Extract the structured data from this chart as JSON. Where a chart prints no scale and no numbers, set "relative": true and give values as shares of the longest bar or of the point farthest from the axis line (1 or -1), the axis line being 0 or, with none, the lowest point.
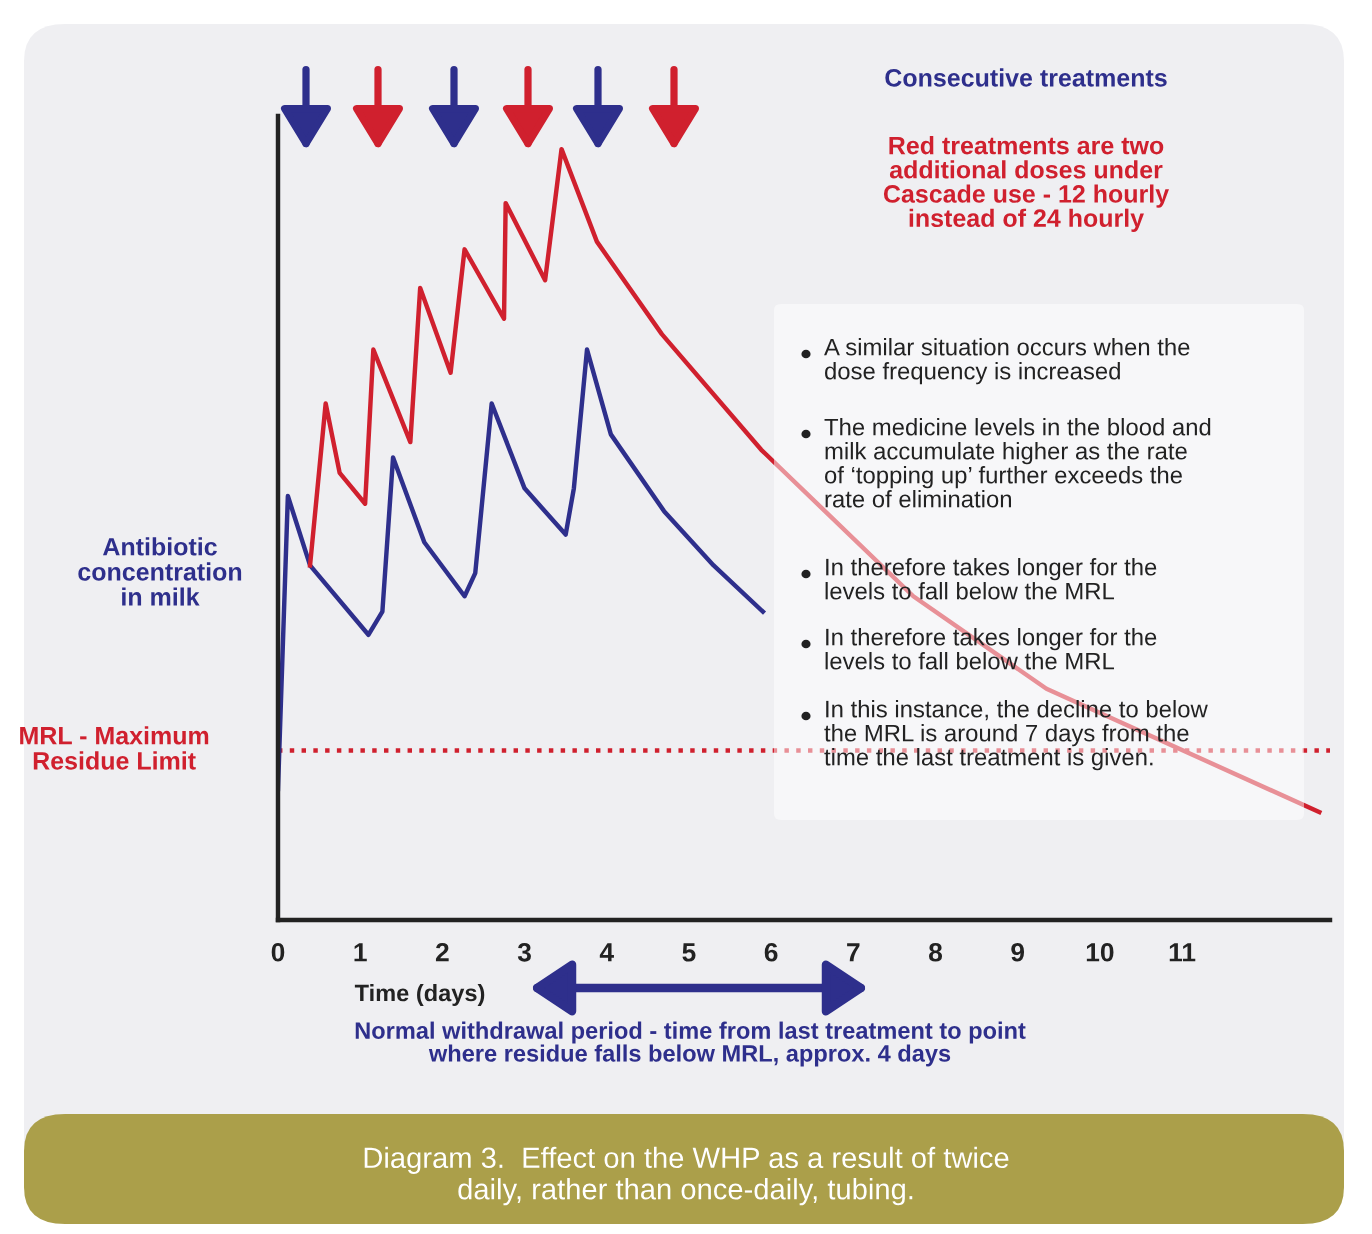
{
  "chart_data": {
    "type": "line",
    "relative": true,
    "xlabel": "Time (days)",
    "ylabel": "Antibiotic\nconcentration\nin milk",
    "xlim": [
      0,
      12.8
    ],
    "xticks": [
      0,
      1,
      2,
      3,
      4,
      5,
      6,
      7,
      8,
      9,
      10,
      11
    ],
    "grid": false,
    "legend": false,
    "marker": "none",
    "line_style": "solid",
    "series": [
      {
        "color": "#2e2f8c",
        "x": [
          0,
          0.12,
          0.39,
          1.1,
          1.27,
          1.4,
          1.78,
          2.27,
          2.4,
          2.6,
          3.0,
          3.5,
          3.6,
          3.76,
          4.05,
          4.7,
          5.3,
          5.9
        ],
        "values": [
          0.17,
          0.55,
          0.46,
          0.37,
          0.4,
          0.6,
          0.49,
          0.42,
          0.45,
          0.67,
          0.56,
          0.5,
          0.56,
          0.74,
          0.63,
          0.53,
          0.46,
          0.4
        ]
      },
      {
        "color": "#d0202e",
        "x": [
          0.39,
          0.58,
          0.75,
          1.06,
          1.16,
          1.61,
          1.73,
          2.1,
          2.27,
          2.75,
          2.77,
          3.25,
          3.45,
          3.88,
          4.67,
          5.88,
          7.73,
          9.35,
          12.67
        ],
        "values": [
          0.46,
          0.67,
          0.58,
          0.54,
          0.74,
          0.62,
          0.82,
          0.71,
          0.87,
          0.78,
          0.93,
          0.83,
          1.0,
          0.88,
          0.76,
          0.61,
          0.42,
          0.3,
          0.14
        ]
      }
    ],
    "ref_lines": [
      {
        "axis": "y",
        "value": 0.22,
        "label": "MRL - Maximum\nResidue Limit",
        "color": "#d0202e",
        "line_style": "dotted"
      }
    ],
    "annotations": [
      "Consecutive treatments",
      "Red treatments are two\nadditional doses under\nCascade use - 12 hourly\ninstead of 24 hourly",
      "A similar situation occurs when the\ndose frequency is increased",
      "The medicine levels in the blood and\nmilk accumulate higher as the rate\nof ‘topping up’ further exceeds the\nrate of elimination",
      "In therefore takes longer for the\nlevels to fall below the MRL",
      "In therefore takes longer for the\nlevels to fall below the MRL",
      "In this instance, the decline to below\nthe MRL is around 7 days from the\ntime the last treatment is given.",
      "Normal withdrawal period - time from last treatment to point\nwhere residue falls below MRL, approx. 4 days",
      "Diagram 3.  Effect on the WHP as a result of twice\ndaily, rather than once-daily, tubing."
    ]
  }
}
